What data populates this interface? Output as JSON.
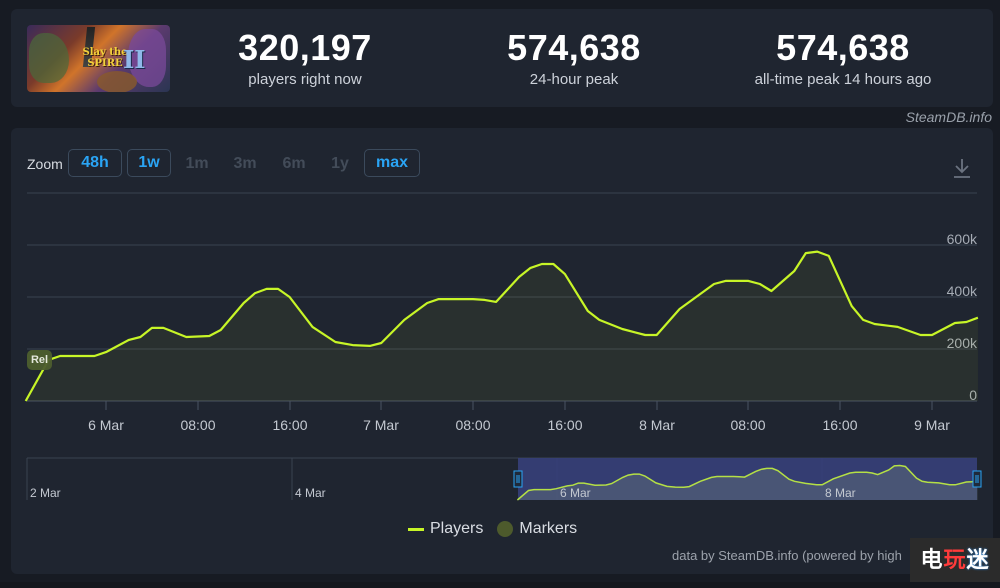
{
  "game": {
    "banner_title_line1": "Slay the",
    "banner_title_line2": "SPIRE",
    "banner_numeral": "II"
  },
  "stats": [
    {
      "value": "320,197",
      "label": "players right now"
    },
    {
      "value": "574,638",
      "label": "24-hour peak"
    },
    {
      "value": "574,638",
      "label": "all-time peak 14 hours ago"
    }
  ],
  "credit_top": "SteamDB.info",
  "zoom": {
    "label": "Zoom",
    "buttons": [
      {
        "label": "48h",
        "enabled": true
      },
      {
        "label": "1w",
        "enabled": true
      },
      {
        "label": "1m",
        "enabled": false
      },
      {
        "label": "3m",
        "enabled": false
      },
      {
        "label": "6m",
        "enabled": false
      },
      {
        "label": "1y",
        "enabled": false
      },
      {
        "label": "max",
        "enabled": true
      }
    ]
  },
  "icons": {
    "download": "download-icon",
    "marker": "release-marker"
  },
  "marker_label": "Rel",
  "legend": {
    "players": "Players",
    "markers": "Markers"
  },
  "credit_bottom": "data by SteamDB.info (powered by high",
  "watermark": {
    "c1": "电",
    "c2": "玩",
    "c3": "迷"
  },
  "colors": {
    "line": "#c7f527",
    "accent": "#2aa4f4",
    "panel": "#1f2530",
    "background": "#171b23",
    "marker": "#4d5e2e",
    "navigator_selection": "#36407a"
  },
  "navigator": {
    "labels": [
      "2 Mar",
      "4 Mar",
      "6 Mar",
      "8 Mar"
    ]
  },
  "chart_data": {
    "type": "line",
    "title": "",
    "xlabel": "",
    "ylabel": "Players",
    "ylim": [
      0,
      800000
    ],
    "y_ticks": [
      "0",
      "200k",
      "400k",
      "600k"
    ],
    "x_ticks": [
      "6 Mar",
      "08:00",
      "16:00",
      "7 Mar",
      "08:00",
      "16:00",
      "8 Mar",
      "08:00",
      "16:00",
      "9 Mar"
    ],
    "grid": true,
    "legend": [
      "Players",
      "Markers"
    ],
    "legend_position": "bottom",
    "annotations": [
      {
        "label": "Rel",
        "x": "5 Mar ~18:00",
        "meaning": "Release marker"
      }
    ],
    "series": [
      {
        "name": "Players",
        "x": [
          "5 Mar 17:00",
          "5 Mar 19:00",
          "5 Mar 20:00",
          "5 Mar 23:00",
          "6 Mar 00:00",
          "6 Mar 02:00",
          "6 Mar 03:00",
          "6 Mar 04:00",
          "6 Mar 05:00",
          "6 Mar 07:00",
          "6 Mar 09:00",
          "6 Mar 10:00",
          "6 Mar 12:00",
          "6 Mar 13:00",
          "6 Mar 14:00",
          "6 Mar 15:00",
          "6 Mar 16:00",
          "6 Mar 18:00",
          "6 Mar 20:00",
          "6 Mar 21:30",
          "6 Mar 23:00",
          "7 Mar 00:00",
          "7 Mar 02:00",
          "7 Mar 04:00",
          "7 Mar 05:00",
          "7 Mar 08:00",
          "7 Mar 09:00",
          "7 Mar 10:00",
          "7 Mar 12:00",
          "7 Mar 13:00",
          "7 Mar 14:00",
          "7 Mar 15:00",
          "7 Mar 16:00",
          "7 Mar 18:00",
          "7 Mar 19:00",
          "7 Mar 21:00",
          "7 Mar 23:00",
          "8 Mar 00:00",
          "8 Mar 02:00",
          "8 Mar 05:00",
          "8 Mar 06:00",
          "8 Mar 08:00",
          "8 Mar 09:00",
          "8 Mar 10:00",
          "8 Mar 12:00",
          "8 Mar 13:00",
          "8 Mar 14:00",
          "8 Mar 15:00",
          "8 Mar 17:00",
          "8 Mar 18:00",
          "8 Mar 19:00",
          "8 Mar 21:00",
          "8 Mar 23:00",
          "9 Mar 00:00",
          "9 Mar 02:00",
          "9 Mar 03:00",
          "9 Mar 04:00"
        ],
        "values": [
          0,
          158000,
          173000,
          173000,
          188000,
          235000,
          246000,
          281000,
          281000,
          246000,
          250000,
          273000,
          377000,
          415000,
          431000,
          431000,
          400000,
          285000,
          227000,
          215000,
          212000,
          223000,
          312000,
          377000,
          392000,
          392000,
          389000,
          381000,
          477000,
          512000,
          527000,
          527000,
          488000,
          346000,
          312000,
          277000,
          254000,
          254000,
          354000,
          450000,
          462000,
          462000,
          450000,
          423000,
          500000,
          569000,
          574638,
          558000,
          365000,
          312000,
          296000,
          285000,
          254000,
          254000,
          300000,
          304000,
          320197
        ]
      }
    ]
  }
}
